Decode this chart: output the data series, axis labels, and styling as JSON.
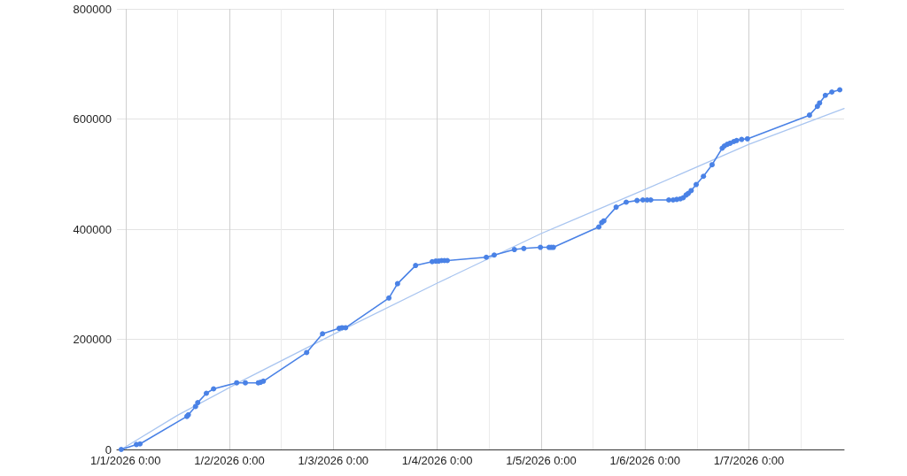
{
  "chart_data": {
    "type": "line",
    "grid": true,
    "marker": "circle",
    "xlim": [
      "2025-12-31T22:00",
      "2026-01-07T22:00"
    ],
    "xticks": [
      {
        "value": "2026-01-01T00:00",
        "label": "1/1/2026 0:00"
      },
      {
        "value": "2026-01-01T12:00",
        "label": null
      },
      {
        "value": "2026-01-02T00:00",
        "label": "1/2/2026 0:00"
      },
      {
        "value": "2026-01-02T12:00",
        "label": null
      },
      {
        "value": "2026-01-03T00:00",
        "label": "1/3/2026 0:00"
      },
      {
        "value": "2026-01-03T12:00",
        "label": null
      },
      {
        "value": "2026-01-04T00:00",
        "label": "1/4/2026 0:00"
      },
      {
        "value": "2026-01-04T12:00",
        "label": null
      },
      {
        "value": "2026-01-05T00:00",
        "label": "1/5/2026 0:00"
      },
      {
        "value": "2026-01-05T12:00",
        "label": null
      },
      {
        "value": "2026-01-06T00:00",
        "label": "1/6/2026 0:00"
      },
      {
        "value": "2026-01-06T12:00",
        "label": null
      },
      {
        "value": "2026-01-07T00:00",
        "label": "1/7/2026 0:00"
      },
      {
        "value": "2026-01-07T12:00",
        "label": null
      }
    ],
    "ylim": [
      0,
      800000
    ],
    "yticks": [
      0,
      200000,
      400000,
      600000,
      800000
    ],
    "x": [
      "2025-12-31T23:00",
      "2026-01-01T02:30",
      "2026-01-01T03:20",
      "2026-01-01T14:10",
      "2026-01-01T14:30",
      "2026-01-01T16:10",
      "2026-01-01T16:40",
      "2026-01-01T18:40",
      "2026-01-01T20:20",
      "2026-01-02T01:40",
      "2026-01-02T03:40",
      "2026-01-02T06:40",
      "2026-01-02T07:10",
      "2026-01-02T07:50",
      "2026-01-02T17:50",
      "2026-01-02T21:30",
      "2026-01-03T01:20",
      "2026-01-03T02:00",
      "2026-01-03T02:50",
      "2026-01-03T12:50",
      "2026-01-03T14:50",
      "2026-01-03T19:00",
      "2026-01-03T22:50",
      "2026-01-03T23:40",
      "2026-01-04T00:20",
      "2026-01-04T01:00",
      "2026-01-04T01:40",
      "2026-01-04T02:20",
      "2026-01-04T11:20",
      "2026-01-04T13:10",
      "2026-01-04T17:50",
      "2026-01-04T20:00",
      "2026-01-04T23:50",
      "2026-01-05T01:50",
      "2026-01-05T02:20",
      "2026-01-05T02:50",
      "2026-01-05T13:20",
      "2026-01-05T14:00",
      "2026-01-05T14:30",
      "2026-01-05T17:20",
      "2026-01-05T19:40",
      "2026-01-05T22:10",
      "2026-01-05T23:30",
      "2026-01-06T00:30",
      "2026-01-06T01:20",
      "2026-01-06T05:30",
      "2026-01-06T06:30",
      "2026-01-06T07:20",
      "2026-01-06T08:10",
      "2026-01-06T08:50",
      "2026-01-06T09:30",
      "2026-01-06T10:00",
      "2026-01-06T10:40",
      "2026-01-06T11:50",
      "2026-01-06T13:30",
      "2026-01-06T15:30",
      "2026-01-06T17:50",
      "2026-01-06T18:20",
      "2026-01-06T19:00",
      "2026-01-06T19:40",
      "2026-01-06T20:30",
      "2026-01-06T21:10",
      "2026-01-06T22:20",
      "2026-01-06T23:40",
      "2026-01-07T14:00",
      "2026-01-07T15:50",
      "2026-01-07T16:20",
      "2026-01-07T17:40",
      "2026-01-07T19:10",
      "2026-01-07T21:00"
    ],
    "series": [
      {
        "color": "#4a82e6",
        "values": [
          0,
          9000,
          10000,
          60000,
          63000,
          78000,
          85000,
          102000,
          110000,
          121000,
          121000,
          121000,
          122000,
          124000,
          176000,
          210000,
          220000,
          221000,
          221000,
          275000,
          301000,
          334000,
          341000,
          342000,
          342000,
          343000,
          343000,
          343000,
          349000,
          353000,
          363000,
          365000,
          367000,
          367000,
          367000,
          367000,
          404000,
          412000,
          415000,
          440000,
          449000,
          452000,
          453000,
          453000,
          453000,
          453000,
          453000,
          454000,
          455000,
          457000,
          462000,
          465000,
          470000,
          481000,
          496000,
          517000,
          547000,
          551000,
          554000,
          556000,
          559000,
          561000,
          563000,
          564000,
          607000,
          623000,
          629000,
          643000,
          649000,
          653000
        ]
      },
      {
        "type": "line",
        "marker": "none",
        "color": "#a9c5f0",
        "x": [
          "2025-12-31T23:00",
          "2026-01-01T12:00",
          "2026-01-02T03:00",
          "2026-01-03T00:00",
          "2026-01-04T00:00",
          "2026-01-05T00:00",
          "2026-01-06T00:00",
          "2026-01-07T00:00",
          "2026-01-07T22:00"
        ],
        "values": [
          0,
          62000,
          125000,
          209000,
          302000,
          392000,
          472000,
          554000,
          619000
        ]
      }
    ]
  }
}
